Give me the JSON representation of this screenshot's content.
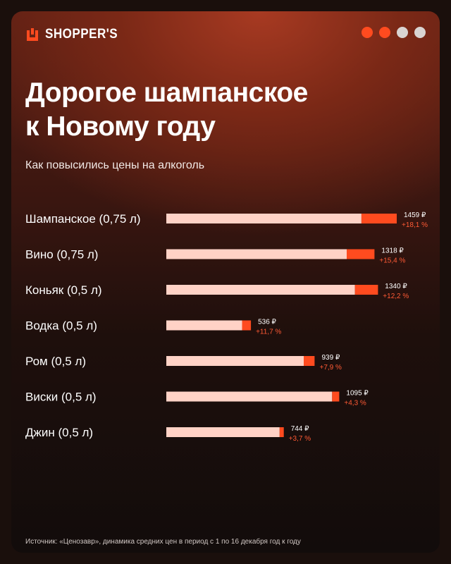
{
  "brand": {
    "name": "SHOPPER'S",
    "logo_icon": "shopping-bag-icon",
    "accent_color": "#ff4b1f"
  },
  "dots": [
    {
      "color": "#ff4b1f"
    },
    {
      "color": "#ff4b1f"
    },
    {
      "color": "#d9d4d2"
    },
    {
      "color": "#d9d4d2"
    }
  ],
  "title_lines": [
    "Дорогое шампанское",
    "к Новому году"
  ],
  "subtitle": "Как повысились цены на алкоголь",
  "chart_data": {
    "type": "bar",
    "orientation": "horizontal",
    "stacked": true,
    "categories": [
      "Шампанское (0,75 л)",
      "Вино (0,75 л)",
      "Коньяк (0,5 л)",
      "Водка (0,5 л)",
      "Ром (0,5 л)",
      "Виски (0,5 л)",
      "Джин (0,5 л)"
    ],
    "values": [
      1459,
      1318,
      1340,
      536,
      939,
      1095,
      744
    ],
    "value_labels": [
      "1459 ₽",
      "1318 ₽",
      "1340 ₽",
      "536 ₽",
      "939 ₽",
      "1095 ₽",
      "744 ₽"
    ],
    "growth_pct": [
      18.1,
      15.4,
      12.2,
      11.7,
      7.9,
      4.3,
      3.7
    ],
    "growth_labels": [
      "+18,1 %",
      "+15,4 %",
      "+12,2 %",
      "+11,7 %",
      "+7,9 %",
      "+4,3 %",
      "+3,7 %"
    ],
    "colors": {
      "base": "#ffd2c6",
      "increase": "#ff4b1f",
      "label": "#ffffff",
      "growth_label": "#ff5a35"
    },
    "xlim": [
      0,
      1459
    ],
    "grid": false,
    "legend": "none"
  },
  "source": "Источник: «Ценозавр», динамика средних цен в период с 1 по 16 декабря год к году"
}
